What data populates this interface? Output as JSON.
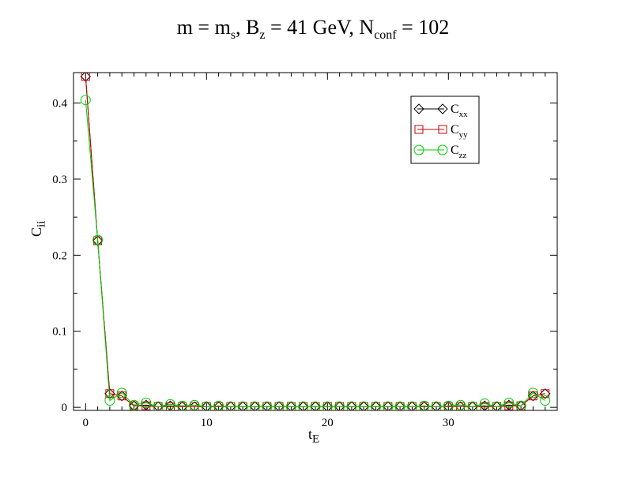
{
  "title": {
    "m": "m = m",
    "m_sub": "s",
    "bz": ", B",
    "bz_sub": "z",
    "bz_val": " = 41 GeV, N",
    "n_sub": "conf",
    "n_val": " = 102"
  },
  "chart_data": {
    "type": "line",
    "xlabel_main": "t",
    "xlabel_sub": "E",
    "ylabel_main": "C",
    "ylabel_sub": "ii",
    "xlim": [
      -1,
      39
    ],
    "ylim": [
      -0.004,
      0.44
    ],
    "xticks": [
      0,
      10,
      20,
      30
    ],
    "yticks": [
      0,
      0.1,
      0.2,
      0.3,
      0.4
    ],
    "ytick_labels": [
      "0",
      "0.1",
      "0.2",
      "0.3",
      "0.4"
    ],
    "legend_position": "top-right",
    "x": [
      0,
      1,
      2,
      3,
      4,
      5,
      6,
      7,
      8,
      9,
      10,
      11,
      12,
      13,
      14,
      15,
      16,
      17,
      18,
      19,
      20,
      21,
      22,
      23,
      24,
      25,
      26,
      27,
      28,
      29,
      30,
      31,
      32,
      33,
      34,
      35,
      36,
      37,
      38
    ],
    "series": [
      {
        "name": "C",
        "sub": "xx",
        "color": "#000000",
        "marker": "diamond",
        "values": [
          0.435,
          0.219,
          0.018,
          0.015,
          0.002,
          0.003,
          0.001,
          0.002,
          0.001,
          0.001,
          0.001,
          0.001,
          0.001,
          0.001,
          0.001,
          0.001,
          0.001,
          0.001,
          0.001,
          0.001,
          0.001,
          0.001,
          0.001,
          0.001,
          0.001,
          0.001,
          0.001,
          0.001,
          0.001,
          0.001,
          0.001,
          0.001,
          0.001,
          0.002,
          0.001,
          0.003,
          0.002,
          0.015,
          0.018
        ]
      },
      {
        "name": "C",
        "sub": "yy",
        "color": "#cc0000",
        "marker": "square",
        "values": [
          0.435,
          0.219,
          0.018,
          0.015,
          0.002,
          0.002,
          0.001,
          0.001,
          0.001,
          0.001,
          0.001,
          0.001,
          0.001,
          0.001,
          0.001,
          0.001,
          0.001,
          0.001,
          0.001,
          0.001,
          0.001,
          0.001,
          0.001,
          0.001,
          0.001,
          0.001,
          0.001,
          0.001,
          0.001,
          0.001,
          0.001,
          0.001,
          0.001,
          0.001,
          0.001,
          0.002,
          0.002,
          0.015,
          0.018
        ]
      },
      {
        "name": "C",
        "sub": "zz",
        "color": "#00cc00",
        "marker": "circle",
        "values": [
          0.404,
          0.22,
          0.009,
          0.019,
          0.003,
          0.006,
          0.001,
          0.004,
          0.002,
          0.003,
          0.001,
          0.002,
          0.001,
          0.001,
          0.001,
          0.001,
          0.001,
          0.001,
          0.001,
          0.001,
          0.001,
          0.001,
          0.001,
          0.001,
          0.001,
          0.001,
          0.001,
          0.001,
          0.002,
          0.001,
          0.002,
          0.003,
          0.001,
          0.005,
          0.001,
          0.006,
          0.002,
          0.019,
          0.009
        ]
      }
    ]
  }
}
